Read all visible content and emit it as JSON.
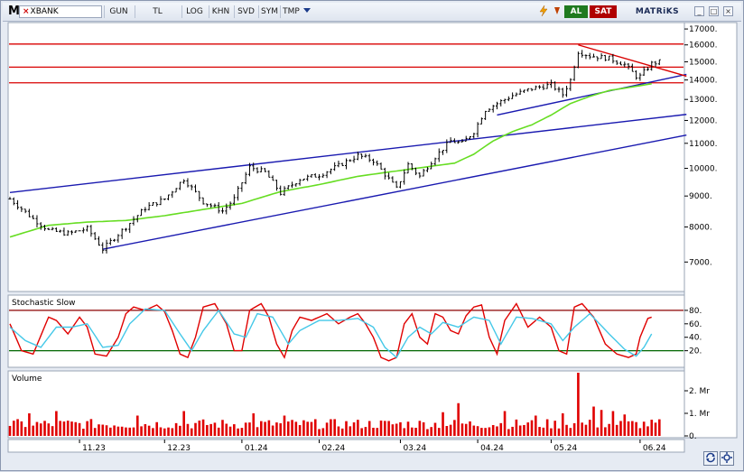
{
  "toolbar": {
    "logo": "M",
    "symbol_prefix": "⨯",
    "symbol": "XBANK",
    "buttons": [
      "GUN",
      "TL",
      "LOG",
      "KHN",
      "SVD",
      "SYM",
      "TMP"
    ],
    "dropdown_icon": "triangle-down-icon",
    "lightning_icon": "lightning-icon",
    "buy_label": "AL",
    "sell_label": "SAT",
    "brand": "MATRiKS",
    "window_buttons": [
      "_",
      "□",
      "×"
    ]
  },
  "colors": {
    "background": "#ffffff",
    "grid": "#e0e0e0",
    "bars": "#000000",
    "horizontal_lines": "#d90000",
    "trend_lines": "#1a1ab0",
    "moving_average": "#66dd22",
    "stoch_k": "#e00000",
    "stoch_d": "#44c8e8",
    "stoch_band": "#006600",
    "stoch_band_top": "#8b0000",
    "volume": "#e00000"
  },
  "chart_data": [
    {
      "type": "line",
      "panel": "price",
      "style": "ohlc-bars",
      "y_axis": {
        "ticks": [
          7000,
          8000,
          9000,
          10000,
          11000,
          12000,
          13000,
          14000,
          15000,
          16000,
          17000
        ],
        "tick_labels": [
          "7000.",
          "8000.",
          "9000.",
          "10000.",
          "11000.",
          "12000.",
          "13000.",
          "14000.",
          "15000.",
          "16000.",
          "17000."
        ],
        "ylim": [
          6300,
          17300
        ],
        "scale": "log",
        "position": "right"
      },
      "x_axis": {
        "tick_labels": [
          "11.23",
          "12.23",
          "01.24",
          "02.24",
          "03.24",
          "04.24",
          "05.24",
          "06.24"
        ],
        "tick_index": [
          18,
          40,
          60,
          80,
          101,
          121,
          140,
          163
        ]
      },
      "n_bars": 175,
      "close_anchors": [
        [
          0,
          8900
        ],
        [
          6,
          8250
        ],
        [
          10,
          7900
        ],
        [
          15,
          7800
        ],
        [
          20,
          7950
        ],
        [
          24,
          7350
        ],
        [
          30,
          8000
        ],
        [
          35,
          8600
        ],
        [
          40,
          8900
        ],
        [
          45,
          9600
        ],
        [
          50,
          8800
        ],
        [
          55,
          8500
        ],
        [
          58,
          8900
        ],
        [
          62,
          10050
        ],
        [
          66,
          9850
        ],
        [
          70,
          9100
        ],
        [
          75,
          9600
        ],
        [
          80,
          9750
        ],
        [
          85,
          10100
        ],
        [
          90,
          10500
        ],
        [
          94,
          10300
        ],
        [
          98,
          9600
        ],
        [
          100,
          9250
        ],
        [
          103,
          10150
        ],
        [
          106,
          9700
        ],
        [
          110,
          10450
        ],
        [
          114,
          11100
        ],
        [
          117,
          11000
        ],
        [
          120,
          11500
        ],
        [
          123,
          12500
        ],
        [
          126,
          12800
        ],
        [
          130,
          13200
        ],
        [
          135,
          13550
        ],
        [
          140,
          13750
        ],
        [
          143,
          13250
        ],
        [
          145,
          14000
        ],
        [
          147,
          15600
        ],
        [
          150,
          15350
        ],
        [
          155,
          15200
        ],
        [
          159,
          14850
        ],
        [
          162,
          14200
        ],
        [
          163,
          14200
        ],
        [
          166,
          14900
        ],
        [
          168,
          15000
        ]
      ],
      "moving_average": {
        "anchors": [
          [
            0,
            7700
          ],
          [
            10,
            8050
          ],
          [
            20,
            8150
          ],
          [
            30,
            8200
          ],
          [
            40,
            8350
          ],
          [
            50,
            8550
          ],
          [
            60,
            8750
          ],
          [
            70,
            9150
          ],
          [
            80,
            9400
          ],
          [
            90,
            9700
          ],
          [
            100,
            9900
          ],
          [
            110,
            10100
          ],
          [
            115,
            10200
          ],
          [
            120,
            10550
          ],
          [
            125,
            11100
          ],
          [
            130,
            11500
          ],
          [
            135,
            11800
          ],
          [
            140,
            12250
          ],
          [
            145,
            12800
          ],
          [
            150,
            13150
          ],
          [
            155,
            13450
          ],
          [
            160,
            13600
          ],
          [
            166,
            13800
          ]
        ]
      },
      "horizontal_lines": [
        16050,
        14700,
        13850
      ],
      "trend_lines": [
        {
          "from": [
            0,
            9120
          ],
          "to": [
            175,
            12280
          ]
        },
        {
          "from": [
            24,
            7350
          ],
          "to": [
            175,
            11350
          ]
        },
        {
          "from": [
            126,
            12250
          ],
          "to": [
            175,
            14300
          ]
        },
        {
          "from": [
            147,
            16000
          ],
          "to": [
            175,
            14200
          ]
        }
      ]
    },
    {
      "type": "line",
      "panel": "stochastic",
      "title": "Stochastic Slow",
      "y_axis": {
        "ticks": [
          20,
          40,
          60,
          80
        ],
        "tick_labels": [
          "20.",
          "40.",
          "60.",
          "80."
        ],
        "ylim": [
          -2,
          100
        ],
        "position": "right"
      },
      "bands": [
        20,
        80
      ],
      "series": [
        {
          "color_key": "stoch_k",
          "anchors": [
            [
              0,
              60
            ],
            [
              3,
              20
            ],
            [
              6,
              15
            ],
            [
              10,
              70
            ],
            [
              12,
              65
            ],
            [
              15,
              45
            ],
            [
              18,
              70
            ],
            [
              20,
              55
            ],
            [
              22,
              15
            ],
            [
              25,
              12
            ],
            [
              28,
              40
            ],
            [
              30,
              75
            ],
            [
              32,
              85
            ],
            [
              35,
              80
            ],
            [
              38,
              88
            ],
            [
              40,
              78
            ],
            [
              42,
              50
            ],
            [
              44,
              15
            ],
            [
              46,
              10
            ],
            [
              48,
              40
            ],
            [
              50,
              85
            ],
            [
              53,
              90
            ],
            [
              56,
              60
            ],
            [
              58,
              20
            ],
            [
              60,
              20
            ],
            [
              62,
              80
            ],
            [
              65,
              90
            ],
            [
              67,
              70
            ],
            [
              69,
              30
            ],
            [
              71,
              10
            ],
            [
              73,
              50
            ],
            [
              75,
              70
            ],
            [
              78,
              65
            ],
            [
              82,
              75
            ],
            [
              85,
              60
            ],
            [
              88,
              70
            ],
            [
              90,
              75
            ],
            [
              92,
              60
            ],
            [
              94,
              40
            ],
            [
              96,
              10
            ],
            [
              98,
              5
            ],
            [
              100,
              10
            ],
            [
              102,
              60
            ],
            [
              104,
              75
            ],
            [
              106,
              40
            ],
            [
              108,
              30
            ],
            [
              110,
              75
            ],
            [
              112,
              70
            ],
            [
              114,
              50
            ],
            [
              116,
              45
            ],
            [
              118,
              72
            ],
            [
              120,
              85
            ],
            [
              122,
              88
            ],
            [
              124,
              40
            ],
            [
              126,
              15
            ],
            [
              128,
              65
            ],
            [
              131,
              90
            ],
            [
              134,
              55
            ],
            [
              137,
              70
            ],
            [
              140,
              55
            ],
            [
              142,
              20
            ],
            [
              144,
              15
            ],
            [
              146,
              85
            ],
            [
              148,
              90
            ],
            [
              151,
              70
            ],
            [
              154,
              30
            ],
            [
              157,
              15
            ],
            [
              160,
              10
            ],
            [
              162,
              15
            ],
            [
              163,
              40
            ],
            [
              165,
              68
            ],
            [
              166,
              70
            ]
          ]
        },
        {
          "color_key": "stoch_d",
          "anchors": [
            [
              0,
              55
            ],
            [
              4,
              35
            ],
            [
              8,
              25
            ],
            [
              12,
              55
            ],
            [
              16,
              55
            ],
            [
              20,
              60
            ],
            [
              24,
              25
            ],
            [
              28,
              28
            ],
            [
              31,
              60
            ],
            [
              35,
              82
            ],
            [
              40,
              80
            ],
            [
              44,
              45
            ],
            [
              47,
              20
            ],
            [
              50,
              50
            ],
            [
              54,
              80
            ],
            [
              58,
              45
            ],
            [
              61,
              40
            ],
            [
              64,
              75
            ],
            [
              68,
              70
            ],
            [
              72,
              30
            ],
            [
              75,
              50
            ],
            [
              80,
              65
            ],
            [
              85,
              65
            ],
            [
              90,
              68
            ],
            [
              94,
              55
            ],
            [
              97,
              25
            ],
            [
              100,
              10
            ],
            [
              103,
              40
            ],
            [
              106,
              55
            ],
            [
              109,
              45
            ],
            [
              112,
              62
            ],
            [
              116,
              55
            ],
            [
              120,
              70
            ],
            [
              124,
              65
            ],
            [
              127,
              30
            ],
            [
              131,
              70
            ],
            [
              135,
              68
            ],
            [
              140,
              60
            ],
            [
              143,
              35
            ],
            [
              146,
              55
            ],
            [
              150,
              75
            ],
            [
              155,
              45
            ],
            [
              159,
              22
            ],
            [
              162,
              12
            ],
            [
              164,
              25
            ],
            [
              166,
              45
            ]
          ]
        }
      ]
    },
    {
      "type": "bar",
      "panel": "volume",
      "title": "Volume",
      "y_axis": {
        "ticks": [
          0,
          1,
          2
        ],
        "tick_labels": [
          "0.",
          "1. Mr",
          "2. Mr"
        ],
        "ylim": [
          0,
          2.8
        ],
        "unit": "Mr",
        "position": "right"
      },
      "baseline_low": 0.3,
      "baseline_high": 1.5,
      "spikes": [
        [
          5,
          1.0
        ],
        [
          12,
          1.1
        ],
        [
          33,
          0.9
        ],
        [
          45,
          1.1
        ],
        [
          63,
          1.0
        ],
        [
          71,
          0.9
        ],
        [
          112,
          1.05
        ],
        [
          116,
          1.45
        ],
        [
          128,
          1.1
        ],
        [
          136,
          0.9
        ],
        [
          143,
          1.0
        ],
        [
          147,
          2.8
        ],
        [
          151,
          1.3
        ],
        [
          153,
          1.15
        ],
        [
          156,
          1.1
        ],
        [
          159,
          0.95
        ]
      ]
    }
  ],
  "bottom_buttons": [
    "sync-icon",
    "settings-icon"
  ]
}
